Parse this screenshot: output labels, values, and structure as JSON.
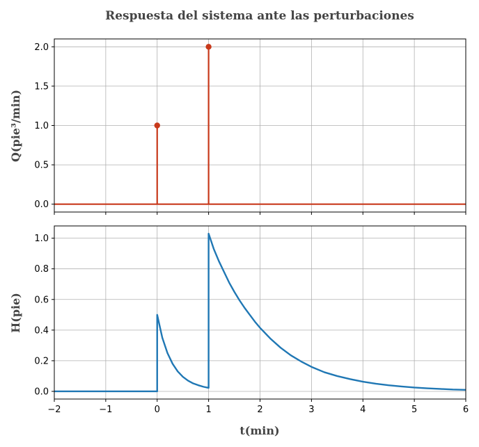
{
  "colors": {
    "stem": "#c8391b",
    "response": "#1f77b4",
    "grid": "#b0b0b0",
    "frame": "#000000"
  },
  "chart_data": [
    {
      "type": "stem",
      "title": "Respuesta del sistema ante las perturbaciones",
      "ylabel": "Q(pie³/min)",
      "xlim": [
        -2,
        6
      ],
      "ylim": [
        -0.1,
        2.1
      ],
      "yticks": [
        0.0,
        0.5,
        1.0,
        1.5,
        2.0
      ],
      "ytick_labels": [
        "0.0",
        "0.5",
        "1.0",
        "1.5",
        "2.0"
      ],
      "grid": true,
      "baseline": {
        "x": [
          -2,
          6
        ],
        "y": 0
      },
      "stems": [
        {
          "x": 0,
          "y": 1.0
        },
        {
          "x": 1,
          "y": 2.0
        }
      ]
    },
    {
      "type": "line",
      "xlabel": "t(min)",
      "ylabel": "H(pie)",
      "xlim": [
        -2,
        6
      ],
      "ylim": [
        -0.05,
        1.08
      ],
      "xticks": [
        -2,
        -1,
        0,
        1,
        2,
        3,
        4,
        5,
        6
      ],
      "xtick_labels": [
        "−2",
        "−1",
        "0",
        "1",
        "2",
        "3",
        "4",
        "5",
        "6"
      ],
      "yticks": [
        0.0,
        0.2,
        0.4,
        0.6,
        0.8,
        1.0
      ],
      "ytick_labels": [
        "0.0",
        "0.2",
        "0.4",
        "0.6",
        "0.8",
        "1.0"
      ],
      "grid": true,
      "series": [
        {
          "x": [
            -2,
            0,
            0,
            0.1,
            0.2,
            0.3,
            0.4,
            0.5,
            0.6,
            0.7,
            0.8,
            0.9,
            1.0,
            1.0,
            1.1,
            1.2,
            1.3,
            1.4,
            1.5,
            1.6,
            1.7,
            1.8,
            1.9,
            2.0,
            2.2,
            2.4,
            2.6,
            2.8,
            3.0,
            3.25,
            3.5,
            3.75,
            4.0,
            4.25,
            4.5,
            4.75,
            5.0,
            5.25,
            5.5,
            5.75,
            6.0
          ],
          "y": [
            0,
            0,
            0.5,
            0.35,
            0.25,
            0.18,
            0.13,
            0.095,
            0.07,
            0.052,
            0.04,
            0.03,
            0.023,
            1.03,
            0.93,
            0.85,
            0.78,
            0.71,
            0.65,
            0.595,
            0.545,
            0.5,
            0.455,
            0.415,
            0.345,
            0.285,
            0.235,
            0.195,
            0.16,
            0.125,
            0.1,
            0.08,
            0.063,
            0.05,
            0.04,
            0.032,
            0.025,
            0.02,
            0.016,
            0.012,
            0.01
          ]
        }
      ]
    }
  ]
}
